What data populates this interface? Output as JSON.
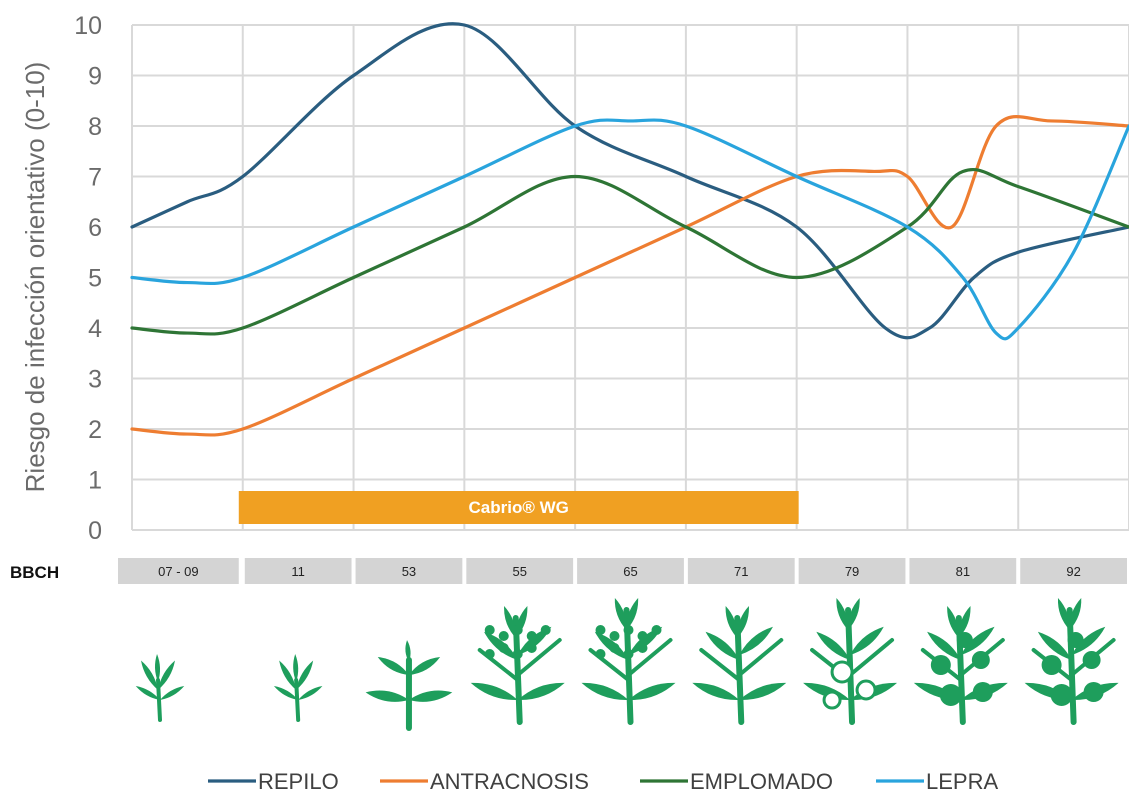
{
  "chart_data": {
    "type": "line",
    "ylabel": "Riesgo de infección orientativo (0-10)",
    "ylim": [
      0,
      10
    ],
    "yticks": [
      0,
      1,
      2,
      3,
      4,
      5,
      6,
      7,
      8,
      9,
      10
    ],
    "grid": true,
    "legend_position": "bottom",
    "series": [
      {
        "name": "REPILO",
        "color": "#2a5d80",
        "points": [
          [
            0,
            6
          ],
          [
            0.5,
            6.5
          ],
          [
            1,
            7
          ],
          [
            2,
            9
          ],
          [
            3,
            10
          ],
          [
            4,
            8
          ],
          [
            5,
            7
          ],
          [
            6,
            6
          ],
          [
            6.8,
            4
          ],
          [
            7.2,
            4
          ],
          [
            7.6,
            5
          ],
          [
            8,
            5.5
          ],
          [
            9,
            6
          ]
        ]
      },
      {
        "name": "ANTRACNOSIS",
        "color": "#ee7d31",
        "points": [
          [
            0,
            2
          ],
          [
            0.5,
            1.9
          ],
          [
            1,
            2
          ],
          [
            2,
            3
          ],
          [
            3,
            4
          ],
          [
            4,
            5
          ],
          [
            5,
            6
          ],
          [
            6,
            7
          ],
          [
            6.7,
            7.1
          ],
          [
            7,
            7
          ],
          [
            7.4,
            6
          ],
          [
            7.8,
            8
          ],
          [
            8.3,
            8.1
          ],
          [
            9,
            8
          ]
        ]
      },
      {
        "name": "EMPLOMADO",
        "color": "#2e7535",
        "points": [
          [
            0,
            4
          ],
          [
            0.5,
            3.9
          ],
          [
            1,
            4
          ],
          [
            2,
            5
          ],
          [
            3,
            6
          ],
          [
            4,
            7
          ],
          [
            5,
            6
          ],
          [
            6,
            5
          ],
          [
            7,
            6
          ],
          [
            7.5,
            7.1
          ],
          [
            8,
            6.8
          ],
          [
            9,
            6
          ]
        ]
      },
      {
        "name": "LEPRA",
        "color": "#29a4dd",
        "points": [
          [
            0,
            5
          ],
          [
            0.5,
            4.9
          ],
          [
            1,
            5
          ],
          [
            2,
            6
          ],
          [
            3,
            7
          ],
          [
            4,
            8
          ],
          [
            4.5,
            8.1
          ],
          [
            5,
            8
          ],
          [
            6,
            7
          ],
          [
            7,
            6
          ],
          [
            7.5,
            5
          ],
          [
            7.8,
            3.9
          ],
          [
            8,
            4
          ],
          [
            8.5,
            5.5
          ],
          [
            9,
            8
          ]
        ]
      }
    ],
    "band": {
      "label": "Cabrio® WG",
      "start": 1,
      "end": 6,
      "color": "#f0a022"
    }
  },
  "bbch": {
    "title": "BBCH",
    "stages": [
      "07 - 09",
      "11",
      "53",
      "55",
      "65",
      "71",
      "79",
      "81",
      "92"
    ]
  },
  "icons": [
    "seedling-icon",
    "seedling-icon",
    "young-shoot-icon",
    "flower-bud-icon",
    "flowering-branch-icon",
    "leafy-branch-icon",
    "fruit-set-icon",
    "fruit-growth-icon",
    "mature-fruit-icon"
  ],
  "plant_color": "#1e9e5c"
}
